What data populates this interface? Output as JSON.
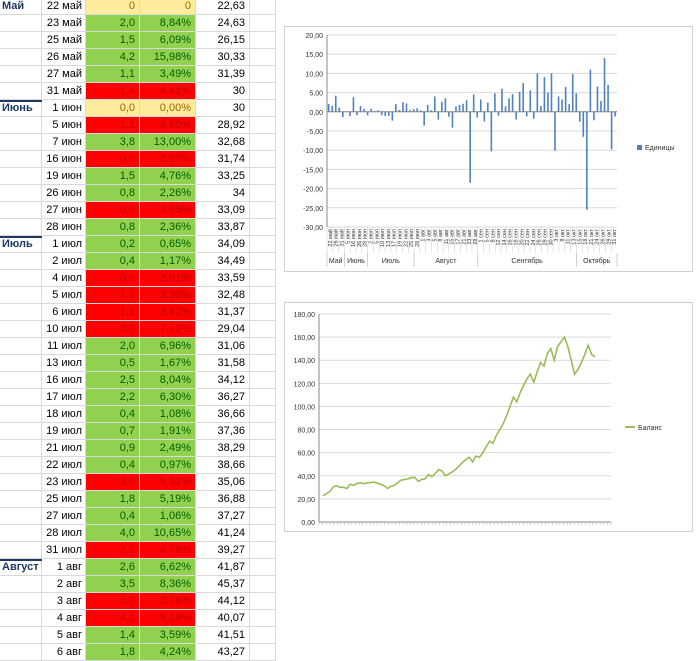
{
  "sheet": {
    "rows": [
      {
        "month": "Май",
        "date": "22 май",
        "v1": "0",
        "v2": "0",
        "bal": "22,63",
        "color": "yellow"
      },
      {
        "month": "",
        "date": "23 май",
        "v1": "2,0",
        "v2": "8,84%",
        "bal": "24,63",
        "color": "green"
      },
      {
        "month": "",
        "date": "25 май",
        "v1": "1,5",
        "v2": "6,09%",
        "bal": "26,15",
        "color": "green"
      },
      {
        "month": "",
        "date": "26 май",
        "v1": "4,2",
        "v2": "15,98%",
        "bal": "30,33",
        "color": "green"
      },
      {
        "month": "",
        "date": "27 май",
        "v1": "1,1",
        "v2": "3,49%",
        "bal": "31,39",
        "color": "green"
      },
      {
        "month": "",
        "date": "31 май",
        "v1": "-1,4",
        "v2": "-4,41%",
        "bal": "30",
        "color": "red"
      },
      {
        "month": "Июнь",
        "date": "1 июн",
        "v1": "0,0",
        "v2": "0,00%",
        "bal": "30",
        "color": "yellow"
      },
      {
        "month": "",
        "date": "5 июн",
        "v1": "-1,1",
        "v2": "-3,60%",
        "bal": "28,92",
        "color": "red"
      },
      {
        "month": "",
        "date": "7 июн",
        "v1": "3,8",
        "v2": "13,00%",
        "bal": "32,68",
        "color": "green"
      },
      {
        "month": "",
        "date": "16 июн",
        "v1": "-0,9",
        "v2": "-2,87%",
        "bal": "31,74",
        "color": "red"
      },
      {
        "month": "",
        "date": "19 июн",
        "v1": "1,5",
        "v2": "4,76%",
        "bal": "33,25",
        "color": "green"
      },
      {
        "month": "",
        "date": "26 июн",
        "v1": "0,8",
        "v2": "2,26%",
        "bal": "34",
        "color": "green"
      },
      {
        "month": "",
        "date": "27 июн",
        "v1": "-0,9",
        "v2": "-2,65%",
        "bal": "33,09",
        "color": "red"
      },
      {
        "month": "",
        "date": "28 июн",
        "v1": "0,8",
        "v2": "2,36%",
        "bal": "33,87",
        "color": "green"
      },
      {
        "month": "Июль",
        "date": "1 июл",
        "v1": "0,2",
        "v2": "0,65%",
        "bal": "34,09",
        "color": "green"
      },
      {
        "month": "",
        "date": "2 июл",
        "v1": "0,4",
        "v2": "1,17%",
        "bal": "34,49",
        "color": "green"
      },
      {
        "month": "",
        "date": "4 июл",
        "v1": "-0,9",
        "v2": "-2,61%",
        "bal": "33,59",
        "color": "red"
      },
      {
        "month": "",
        "date": "5 июл",
        "v1": "-1,1",
        "v2": "-3,30%",
        "bal": "32,48",
        "color": "red"
      },
      {
        "month": "",
        "date": "6 июл",
        "v1": "-1,1",
        "v2": "-3,42%",
        "bal": "31,37",
        "color": "red"
      },
      {
        "month": "",
        "date": "10 июл",
        "v1": "-2,3",
        "v2": "-7,42%",
        "bal": "29,04",
        "color": "red"
      },
      {
        "month": "",
        "date": "11 июл",
        "v1": "2,0",
        "v2": "6,96%",
        "bal": "31,06",
        "color": "green"
      },
      {
        "month": "",
        "date": "13 июл",
        "v1": "0,5",
        "v2": "1,67%",
        "bal": "31,58",
        "color": "green"
      },
      {
        "month": "",
        "date": "16 июл",
        "v1": "2,5",
        "v2": "8,04%",
        "bal": "34,12",
        "color": "green"
      },
      {
        "month": "",
        "date": "17 июл",
        "v1": "2,2",
        "v2": "6,30%",
        "bal": "36,27",
        "color": "green"
      },
      {
        "month": "",
        "date": "18 июл",
        "v1": "0,4",
        "v2": "1,08%",
        "bal": "36,66",
        "color": "green"
      },
      {
        "month": "",
        "date": "19 июл",
        "v1": "0,7",
        "v2": "1,91%",
        "bal": "37,36",
        "color": "green"
      },
      {
        "month": "",
        "date": "21 июл",
        "v1": "0,9",
        "v2": "2,49%",
        "bal": "38,29",
        "color": "green"
      },
      {
        "month": "",
        "date": "22 июл",
        "v1": "0,4",
        "v2": "0,97%",
        "bal": "38,66",
        "color": "green"
      },
      {
        "month": "",
        "date": "23 июл",
        "v1": "-3,6",
        "v2": "-9,31%",
        "bal": "35,06",
        "color": "red"
      },
      {
        "month": "",
        "date": "25 июл",
        "v1": "1,8",
        "v2": "5,19%",
        "bal": "36,88",
        "color": "green"
      },
      {
        "month": "",
        "date": "27 июл",
        "v1": "0,4",
        "v2": "1,06%",
        "bal": "37,27",
        "color": "green"
      },
      {
        "month": "",
        "date": "28 июл",
        "v1": "4,0",
        "v2": "10,65%",
        "bal": "41,24",
        "color": "green"
      },
      {
        "month": "",
        "date": "31 июл",
        "v1": "-2,0",
        "v2": "-4,78%",
        "bal": "39,27",
        "color": "red"
      },
      {
        "month": "Август",
        "date": "1 авг",
        "v1": "2,6",
        "v2": "6,62%",
        "bal": "41,87",
        "color": "green"
      },
      {
        "month": "",
        "date": "2 авг",
        "v1": "3,5",
        "v2": "8,36%",
        "bal": "45,37",
        "color": "green"
      },
      {
        "month": "",
        "date": "3 авг",
        "v1": "-1,3",
        "v2": "-2,76%",
        "bal": "44,12",
        "color": "red"
      },
      {
        "month": "",
        "date": "4 авг",
        "v1": "-4,1",
        "v2": "-9,18%",
        "bal": "40,07",
        "color": "red"
      },
      {
        "month": "",
        "date": "5 авг",
        "v1": "1,4",
        "v2": "3,59%",
        "bal": "41,51",
        "color": "green"
      },
      {
        "month": "",
        "date": "6 авг",
        "v1": "1,8",
        "v2": "4,24%",
        "bal": "43,27",
        "color": "green"
      }
    ]
  },
  "chart_data": [
    {
      "type": "bar",
      "legend": "Единицы",
      "legend_position": "right",
      "ylim": [
        -30,
        20
      ],
      "y_ticks": [
        "20,00",
        "15,00",
        "10,00",
        "5,00",
        "0,00",
        "-5,00",
        "-10,00",
        "-15,00",
        "-20,00",
        "-25,00",
        "-30,00"
      ],
      "month_labels": [
        "Май",
        "Июнь",
        "Июль",
        "Август",
        "Сентябрь",
        "Октябрь"
      ],
      "month_spans": [
        3,
        4,
        8,
        11,
        17,
        7
      ],
      "x_labels": [
        "22 май",
        "26 май",
        "31 май",
        "5 июн",
        "16 июн",
        "26 июн",
        "28 июн",
        "2 июл",
        "5 июл",
        "10 июл",
        "13 июл",
        "17 июл",
        "19 июл",
        "22 июл",
        "25 июл",
        "28 июл",
        "1 авг",
        "3 авг",
        "5 авг",
        "8 авг",
        "11 авг",
        "15 авг",
        "17 авг",
        "21 авг",
        "23 авг",
        "28 авг",
        "1 сен",
        "5 сен",
        "8 сен",
        "12 сен",
        "14 сен",
        "16 сен",
        "18 сен",
        "20 сен",
        "22 сен",
        "24 сен",
        "26 сен",
        "28 сен",
        "30 сен",
        "3 окт",
        "8 окт",
        "11 окт",
        "13 окт",
        "15 окт",
        "18 окт",
        "21 окт",
        "24 окт",
        "26 окт",
        "29 окт",
        "31 окт"
      ],
      "values": [
        2.0,
        1.5,
        4.2,
        1.1,
        -1.4,
        0.0,
        -1.1,
        3.8,
        -0.9,
        1.5,
        0.8,
        -0.9,
        0.8,
        0.2,
        0.4,
        -0.9,
        -1.1,
        -1.1,
        -2.3,
        2.0,
        0.5,
        2.5,
        2.2,
        0.4,
        0.7,
        0.9,
        0.4,
        -3.6,
        1.8,
        0.4,
        4.0,
        -2.0,
        2.6,
        3.5,
        -1.3,
        -4.1,
        1.4,
        1.8,
        2.1,
        3.0,
        -18.5,
        4.5,
        -1.5,
        3.2,
        -2.5,
        2.4,
        -10.3,
        4.8,
        -1.0,
        6.0,
        1.4,
        3.5,
        4.6,
        -2.0,
        5.2,
        7.5,
        -1.2,
        5.6,
        -1.8,
        10.0,
        1.5,
        9.0,
        5.0,
        10.0,
        -10.1,
        4.0,
        3.2,
        6.5,
        2.0,
        9.8,
        4.8,
        -2.6,
        -6.5,
        -25.5,
        11.0,
        -2.2,
        6.6,
        2.8,
        14.0,
        7.0,
        -9.8,
        -1.2
      ]
    },
    {
      "type": "line",
      "legend": "Баланс",
      "legend_position": "right",
      "ylim": [
        0,
        180
      ],
      "y_ticks": [
        "180,00",
        "160,00",
        "140,00",
        "120,00",
        "100,00",
        "80,00",
        "60,00",
        "40,00",
        "20,00",
        "0,00"
      ],
      "values": [
        22.6,
        24.6,
        26.2,
        30.3,
        31.4,
        30.0,
        30.0,
        28.9,
        32.7,
        31.7,
        33.3,
        34.0,
        33.1,
        33.9,
        34.1,
        34.5,
        33.6,
        32.5,
        31.4,
        29.0,
        31.1,
        31.6,
        34.1,
        36.3,
        36.7,
        37.4,
        38.3,
        38.7,
        35.1,
        36.9,
        37.3,
        41.2,
        39.3,
        41.9,
        45.4,
        44.1,
        40.1,
        41.5,
        43.3,
        45.4,
        48.4,
        51.5,
        54.0,
        56.0,
        52.0,
        57.0,
        56.0,
        60.0,
        65.0,
        70.0,
        68.0,
        75.0,
        80.0,
        85.0,
        92.0,
        100.0,
        108.0,
        104.0,
        112.0,
        118.0,
        124.0,
        128.0,
        121.0,
        130.0,
        138.0,
        135.0,
        146.0,
        150.0,
        140.0,
        152.0,
        156.0,
        160.0,
        152.0,
        140.0,
        128.0,
        132.0,
        138.0,
        145.0,
        153.0,
        145.0,
        143.0
      ]
    }
  ]
}
